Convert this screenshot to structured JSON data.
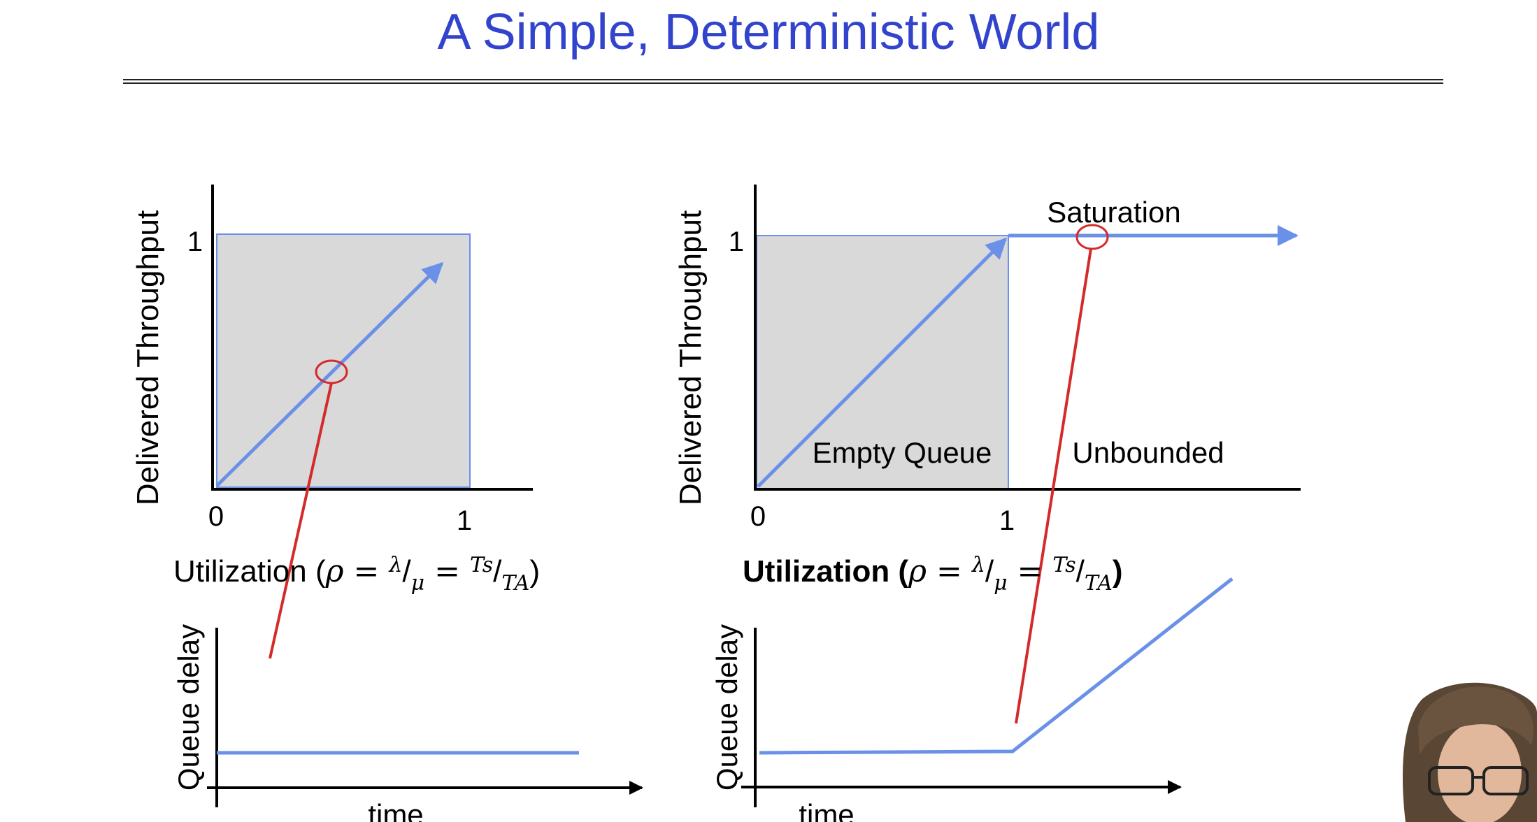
{
  "slide": {
    "title": "A Simple, Deterministic World"
  },
  "left_plot": {
    "y_label": "Delivered Throughput",
    "y_tick": "1",
    "x_tick_0": "0",
    "x_tick_1": "1",
    "x_label_prefix": "Utilization (",
    "x_label_suffix": ")"
  },
  "right_plot": {
    "y_label": "Delivered Throughput",
    "y_tick": "1",
    "x_tick_0": "0",
    "x_tick_1": "1",
    "x_label_prefix": "Utilization (",
    "x_label_suffix": ")",
    "saturation_label": "Saturation",
    "empty_queue_label": "Empty Queue",
    "unbounded_label": "Unbounded"
  },
  "left_delay": {
    "y_label": "Queue delay",
    "x_label": "time"
  },
  "right_delay": {
    "y_label": "Queue delay",
    "x_label": "time"
  },
  "colors": {
    "title": "#3344cc",
    "curve": "#6a90e8",
    "shade": "#d9d9d9",
    "marker": "#d42a2a",
    "axis": "#000000"
  }
}
